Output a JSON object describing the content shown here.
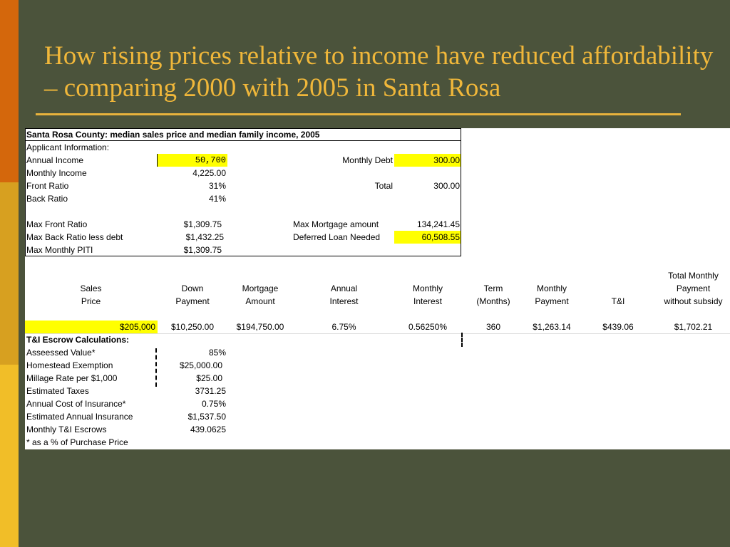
{
  "slide": {
    "title": "How rising prices relative to income have reduced affordability – comparing 2000 with 2005 in Santa Rosa",
    "colors": {
      "background": "#4b533b",
      "title": "#f0b73a",
      "highlight": "#ffff00"
    }
  },
  "sheet": {
    "header": "Santa Rosa County: median sales price and median family income, 2005",
    "applicant_label": "Applicant Information:",
    "annual_income": {
      "label": "Annual Income",
      "value": "50,700"
    },
    "monthly_debt": {
      "label": "Monthly Debt",
      "value": "300.00"
    },
    "monthly_income": {
      "label": "Monthly Income",
      "value": "4,225.00"
    },
    "front_ratio": {
      "label": "Front Ratio",
      "value": "31%"
    },
    "total": {
      "label": "Total",
      "value": "300.00"
    },
    "back_ratio": {
      "label": "Back Ratio",
      "value": "41%"
    },
    "max_front_ratio": {
      "label": "Max Front Ratio",
      "value": "$1,309.75"
    },
    "max_mortgage": {
      "label": "Max Mortgage amount",
      "value": "134,241.45"
    },
    "max_back_ratio": {
      "label": "Max Back Ratio less debt",
      "value": "$1,432.25"
    },
    "deferred_loan": {
      "label": "Deferred Loan Needed",
      "value": "60,508.55"
    },
    "max_piti": {
      "label": "Max Monthly PITI",
      "value": "$1,309.75"
    },
    "columns": {
      "sales": [
        "Sales",
        "Price"
      ],
      "down": [
        "Down",
        "Payment"
      ],
      "mortgage": [
        "Mortgage",
        "Amount"
      ],
      "annual_interest": [
        "Annual",
        "Interest"
      ],
      "monthly_interest": [
        "Monthly",
        "Interest"
      ],
      "term": [
        "Term",
        "(Months)"
      ],
      "monthly_payment": [
        "Monthly",
        "Payment"
      ],
      "ti": [
        "T&I"
      ],
      "total_monthly": [
        "Total Monthly",
        "Payment",
        "without subsidy"
      ]
    },
    "row": {
      "sales_price": "$205,000",
      "down_payment": "$10,250.00",
      "mortgage_amount": "$194,750.00",
      "annual_interest": "6.75%",
      "monthly_interest": "0.56250%",
      "term": "360",
      "monthly_payment": "$1,263.14",
      "ti": "$439.06",
      "total_monthly": "$1,702.21"
    },
    "escrow": {
      "header": "T&I Escrow Calculations:",
      "assessed_value": {
        "label": "Asseessed Value*",
        "value": "85%"
      },
      "homestead": {
        "label": "Homestead Exemption",
        "value": "$25,000.00"
      },
      "millage": {
        "label": "Millage Rate per $1,000",
        "value": "$25.00"
      },
      "taxes": {
        "label": "Estimated Taxes",
        "value": "3731.25"
      },
      "insurance_cost": {
        "label": "Annual Cost of Insurance*",
        "value": "0.75%"
      },
      "annual_insurance": {
        "label": "Estimated Annual Insurance",
        "value": "$1,537.50"
      },
      "monthly_escrows": {
        "label": "Monthly T&I Escrows",
        "value": "439.0625"
      },
      "footnote": "* as a % of Purchase Price"
    }
  }
}
